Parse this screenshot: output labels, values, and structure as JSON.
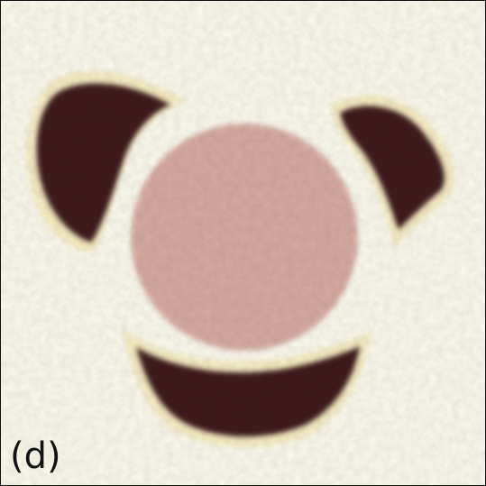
{
  "panel_label": "(d)",
  "colors": {
    "background": "#fdfbee",
    "halo": "#fbf3c9",
    "dark_region": "#3f1c1f",
    "center_disk": "#d9aea3",
    "frame": "#111111"
  }
}
